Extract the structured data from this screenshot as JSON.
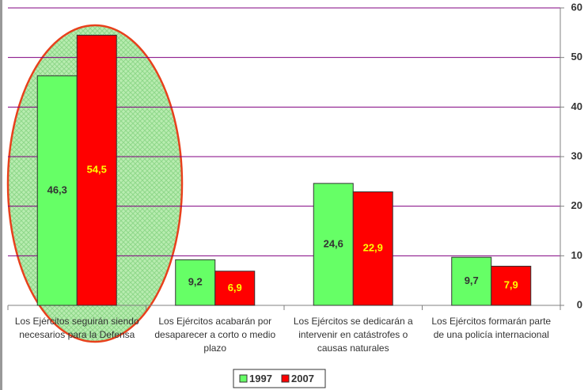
{
  "chart_data": {
    "type": "bar",
    "categories": [
      "Los Ejércitos seguirán siendo necesarios para la Defensa",
      "Los Ejércitos acabarán por desaparecer a corto o medio plazo",
      "Los Ejércitos se dedicarán a intervenir en catástrofes o causas naturales",
      "Los Ejércitos formarán parte de una policía internacional"
    ],
    "series": [
      {
        "name": "1997",
        "color": "#66ff66",
        "label_color": "#333333",
        "values": [
          46.3,
          9.2,
          24.6,
          9.7
        ],
        "value_labels": [
          "46,3",
          "9,2",
          "24,6",
          "9,7"
        ]
      },
      {
        "name": "2007",
        "color": "#ff0000",
        "label_color": "#ffff00",
        "values": [
          54.5,
          6.9,
          22.9,
          7.9
        ],
        "value_labels": [
          "54,5",
          "6,9",
          "22,9",
          "7,9"
        ]
      }
    ],
    "ylim": [
      0,
      60
    ],
    "yticks": [
      0,
      10,
      20,
      30,
      40,
      50,
      60
    ],
    "y_axis_side": "right",
    "grid": true,
    "grid_color": "#800080",
    "legend": "bottom"
  }
}
